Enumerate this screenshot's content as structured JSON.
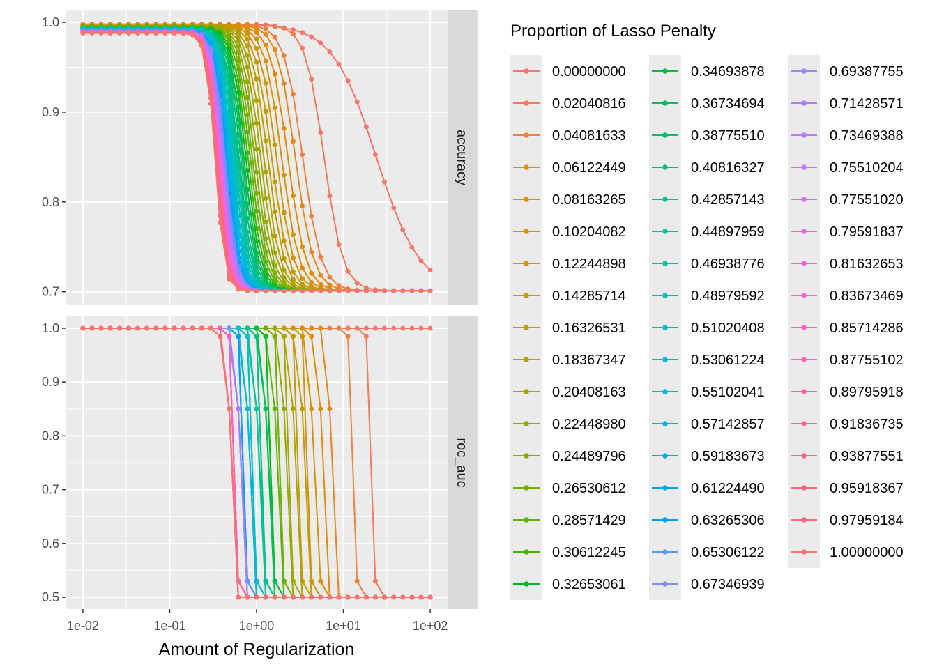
{
  "chart_data": {
    "type": "line",
    "xlabel": "Amount of Regularization",
    "x_scale": "log10",
    "xlim": [
      0.01,
      100
    ],
    "x_ticks": [
      "1e-02",
      "1e-01",
      "1e+00",
      "1e+01",
      "1e+02"
    ],
    "legend_title": "Proportion of Lasso Penalty",
    "legend_position": "right",
    "grid": true,
    "facets": [
      {
        "name": "accuracy",
        "ylim": [
          0.7,
          1.0
        ],
        "y_ticks": [
          "0.7",
          "0.8",
          "0.9",
          "1.0"
        ],
        "top": 0.998,
        "bottom": 0.701
      },
      {
        "name": "roc_auc",
        "ylim": [
          0.5,
          1.0
        ],
        "y_ticks": [
          "0.5",
          "0.6",
          "0.7",
          "0.8",
          "0.9",
          "1.0"
        ],
        "top": 1.0,
        "bottom": 0.5
      }
    ],
    "x_grid": [
      0.01,
      0.01274,
      0.01624,
      0.02069,
      0.02637,
      0.0336,
      0.04281,
      0.05456,
      0.06952,
      0.08859,
      0.1129,
      0.1438,
      0.1833,
      0.2336,
      0.2976,
      0.3793,
      0.4833,
      0.6158,
      0.7848,
      1.0,
      1.274,
      1.624,
      2.069,
      2.637,
      3.36,
      4.281,
      5.456,
      6.952,
      8.859,
      11.29,
      14.38,
      18.33,
      23.36,
      29.76,
      37.93,
      48.33,
      61.58,
      78.48,
      100
    ],
    "penalties": [
      "0.00000000",
      "0.02040816",
      "0.04081633",
      "0.06122449",
      "0.08163265",
      "0.10204082",
      "0.12244898",
      "0.14285714",
      "0.16326531",
      "0.18367347",
      "0.20408163",
      "0.22448980",
      "0.24489796",
      "0.26530612",
      "0.28571429",
      "0.30612245",
      "0.32653061",
      "0.34693878",
      "0.36734694",
      "0.38775510",
      "0.40816327",
      "0.42857143",
      "0.44897959",
      "0.46938776",
      "0.48979592",
      "0.51020408",
      "0.53061224",
      "0.55102041",
      "0.57142857",
      "0.59183673",
      "0.61224490",
      "0.63265306",
      "0.65306122",
      "0.67346939",
      "0.69387755",
      "0.71428571",
      "0.73469388",
      "0.75510204",
      "0.77551020",
      "0.79591837",
      "0.81632653",
      "0.83673469",
      "0.85714286",
      "0.87755102",
      "0.89795918",
      "0.91836735",
      "0.93877551",
      "0.95918367",
      "0.97959184",
      "1.00000000"
    ],
    "colors": [
      "#F8766D",
      "#F37B59",
      "#ED8141",
      "#E7861B",
      "#E08B00",
      "#D89000",
      "#CF9400",
      "#C59900",
      "#BB9D00",
      "#B0A100",
      "#A3A500",
      "#95A900",
      "#86AC00",
      "#74AF00",
      "#5EB300",
      "#3FB600",
      "#00B81F",
      "#00BA42",
      "#00BC59",
      "#00BE6C",
      "#00BF7D",
      "#00C08D",
      "#00C19C",
      "#00C0AB",
      "#00BFB8",
      "#00BDC4",
      "#00BAD0",
      "#00B6DB",
      "#00B2E4",
      "#00ACED",
      "#00A5F4",
      "#009EFA",
      "#5C96FF",
      "#7F8DFF",
      "#9A84FF",
      "#AE7BFF",
      "#C077FF",
      "#CF72FA",
      "#DC6EF3",
      "#E768EA",
      "#EF67E0",
      "#F664D4",
      "#FA62C6",
      "#FD63B8",
      "#FF64AA",
      "#FF659B",
      "#FE668C",
      "#FC697D",
      "#FA6B72",
      "#F8766D"
    ],
    "series_params": {
      "accuracy_midpoint": [
        24.0,
        6.0,
        3.4,
        2.8,
        2.3,
        1.95,
        1.7,
        1.5,
        1.35,
        1.22,
        1.12,
        1.03,
        0.96,
        0.9,
        0.85,
        0.8,
        0.76,
        0.72,
        0.69,
        0.66,
        0.63,
        0.61,
        0.59,
        0.57,
        0.55,
        0.53,
        0.515,
        0.5,
        0.485,
        0.47,
        0.46,
        0.45,
        0.44,
        0.43,
        0.42,
        0.41,
        0.4,
        0.395,
        0.39,
        0.385,
        0.38,
        0.375,
        0.37,
        0.365,
        0.36,
        0.355,
        0.35,
        0.345,
        0.34,
        0.335
      ],
      "roc_auc_cutoff": [
        null,
        22.0,
        12.0,
        7.0,
        5.3,
        4.4,
        3.8,
        3.3,
        2.9,
        2.6,
        2.35,
        2.1,
        1.9,
        1.75,
        1.6,
        1.5,
        1.4,
        1.3,
        1.22,
        1.15,
        1.08,
        1.02,
        0.96,
        0.91,
        0.87,
        0.83,
        0.79,
        0.76,
        0.73,
        0.7,
        0.68,
        0.66,
        0.64,
        0.62,
        0.6,
        0.59,
        0.58,
        0.57,
        0.56,
        0.55,
        0.54,
        0.53,
        0.52,
        0.51,
        0.505,
        0.5,
        0.49,
        0.485,
        0.48,
        0.475
      ]
    }
  }
}
